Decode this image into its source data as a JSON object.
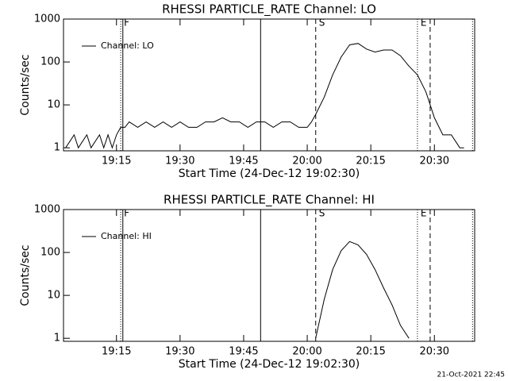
{
  "footer": "21-Oct-2021 22:45",
  "chart_data": [
    {
      "type": "line",
      "title": "RHESSI PARTICLE_RATE Channel: LO",
      "x_label": "Start Time (24-Dec-12 19:02:30)",
      "y_label": "Counts/sec",
      "log_y": true,
      "legend": "upper left",
      "xlim": [
        "19:02:30",
        "20:39:30"
      ],
      "ylim": [
        0.85,
        1000
      ],
      "xticks": [
        "19:15",
        "19:30",
        "19:45",
        "20:00",
        "20:15",
        "20:30"
      ],
      "yticks": [
        1,
        10,
        100,
        1000
      ],
      "markers": [
        {
          "x": "19:16",
          "style": "dotted",
          "label": "F"
        },
        {
          "x": "19:16:30",
          "style": "solid"
        },
        {
          "x": "19:49",
          "style": "solid"
        },
        {
          "x": "20:02",
          "style": "dashed",
          "label": "S"
        },
        {
          "x": "20:26",
          "style": "dotted",
          "label": "E"
        },
        {
          "x": "20:29",
          "style": "dashed"
        },
        {
          "x": "20:39",
          "style": "dotted"
        }
      ],
      "x": [
        "19:03",
        "19:05",
        "19:06",
        "19:08",
        "19:09",
        "19:11",
        "19:12",
        "19:13",
        "19:14",
        "19:15",
        "19:16",
        "19:17",
        "19:18",
        "19:20",
        "19:22",
        "19:24",
        "19:26",
        "19:28",
        "19:30",
        "19:32",
        "19:34",
        "19:36",
        "19:38",
        "19:40",
        "19:42",
        "19:44",
        "19:46",
        "19:48",
        "19:50",
        "19:52",
        "19:54",
        "19:56",
        "19:58",
        "20:00",
        "20:01",
        "20:02",
        "20:04",
        "20:06",
        "20:08",
        "20:10",
        "20:12",
        "20:14",
        "20:16",
        "20:18",
        "20:20",
        "20:22",
        "20:24",
        "20:26",
        "20:28",
        "20:30",
        "20:32",
        "20:34",
        "20:36",
        "20:37"
      ],
      "series": [
        {
          "name": "Channel: LO",
          "color": "#000000",
          "values": [
            1,
            2,
            1,
            2,
            1,
            2,
            1,
            2,
            1,
            2,
            3,
            3,
            4,
            3,
            4,
            3,
            4,
            3,
            4,
            3,
            3,
            4,
            4,
            5,
            4,
            4,
            3,
            4,
            4,
            3,
            4,
            4,
            3,
            3,
            4,
            6,
            15,
            50,
            130,
            250,
            270,
            200,
            170,
            190,
            190,
            140,
            80,
            50,
            20,
            5,
            2,
            2,
            1,
            1
          ]
        }
      ]
    },
    {
      "type": "line",
      "title": "RHESSI PARTICLE_RATE Channel: HI",
      "x_label": "Start Time (24-Dec-12 19:02:30)",
      "y_label": "Counts/sec",
      "log_y": true,
      "legend": "upper left",
      "xlim": [
        "19:02:30",
        "20:39:30"
      ],
      "ylim": [
        0.85,
        1000
      ],
      "xticks": [
        "19:15",
        "19:30",
        "19:45",
        "20:00",
        "20:15",
        "20:30"
      ],
      "yticks": [
        1,
        10,
        100,
        1000
      ],
      "markers": [
        {
          "x": "19:16",
          "style": "dotted",
          "label": "F"
        },
        {
          "x": "19:16:30",
          "style": "solid"
        },
        {
          "x": "19:49",
          "style": "solid"
        },
        {
          "x": "20:02",
          "style": "dashed",
          "label": "S"
        },
        {
          "x": "20:26",
          "style": "dotted",
          "label": "E"
        },
        {
          "x": "20:29",
          "style": "dashed"
        },
        {
          "x": "20:39",
          "style": "dotted"
        }
      ],
      "x": [
        "20:02",
        "20:04",
        "20:06",
        "20:08",
        "20:10",
        "20:12",
        "20:14",
        "20:16",
        "20:18",
        "20:20",
        "20:22",
        "20:24"
      ],
      "series": [
        {
          "name": "Channel: HI",
          "color": "#000000",
          "values": [
            1,
            8,
            40,
            110,
            180,
            150,
            90,
            40,
            15,
            6,
            2,
            1
          ]
        }
      ]
    }
  ]
}
